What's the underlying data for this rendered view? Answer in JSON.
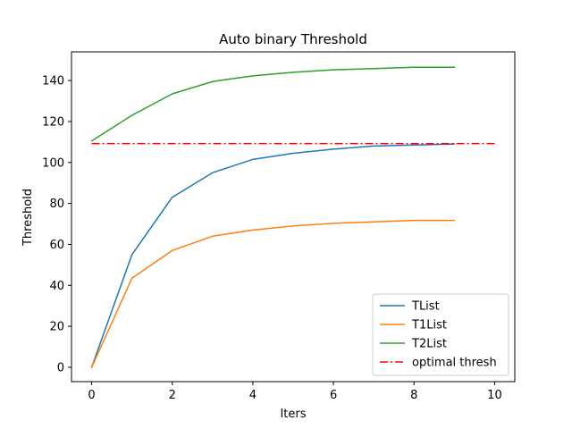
{
  "chart_data": {
    "type": "line",
    "title": "Auto binary Threshold",
    "xlabel": "Iters",
    "ylabel": "Threshold",
    "xlim": [
      -0.5,
      10.5
    ],
    "ylim": [
      -7,
      154
    ],
    "xticks": [
      0,
      2,
      4,
      6,
      8,
      10
    ],
    "yticks": [
      0,
      20,
      40,
      60,
      80,
      100,
      120,
      140
    ],
    "grid": false,
    "legend_position": "lower-right",
    "series": [
      {
        "name": "TList",
        "color": "#1f77b4",
        "style": "solid",
        "x": [
          0,
          1,
          2,
          3,
          4,
          5,
          6,
          7,
          8,
          9
        ],
        "y": [
          0,
          55,
          83,
          95,
          101.5,
          104.5,
          106.5,
          108,
          108.5,
          109
        ]
      },
      {
        "name": "T1List",
        "color": "#ff7f0e",
        "style": "solid",
        "x": [
          0,
          1,
          2,
          3,
          4,
          5,
          6,
          7,
          8,
          9
        ],
        "y": [
          0,
          43.5,
          57,
          64,
          67,
          69,
          70.3,
          71,
          71.7,
          71.7
        ]
      },
      {
        "name": "T2List",
        "color": "#2ca02c",
        "style": "solid",
        "x": [
          0,
          1,
          2,
          3,
          4,
          5,
          6,
          7,
          8,
          9
        ],
        "y": [
          110.5,
          123,
          133.5,
          139.5,
          142.3,
          144,
          145.2,
          145.8,
          146.5,
          146.5
        ]
      },
      {
        "name": "optimal thresh",
        "color": "#ff0000",
        "style": "dashdot",
        "x": [
          0,
          10
        ],
        "y": [
          109.2,
          109.2
        ]
      }
    ]
  }
}
